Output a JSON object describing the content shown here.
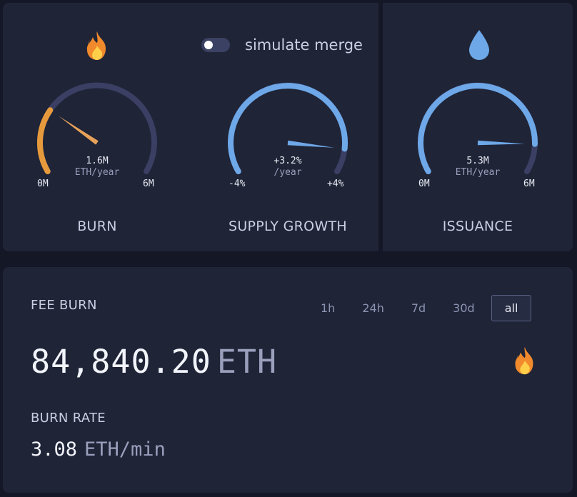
{
  "toggle": {
    "label": "simulate merge",
    "on": false
  },
  "gauges": [
    {
      "title": "BURN",
      "value": "1.6M",
      "unit": "ETH/year",
      "min": "0M",
      "max": "6M",
      "fraction": 0.27,
      "color": "#e79a3c",
      "icon": "fire-icon"
    },
    {
      "title": "SUPPLY GROWTH",
      "value": "+3.2%",
      "unit": "/year",
      "min": "-4%",
      "max": "+4%",
      "fraction": 0.9,
      "color": "#6ea8e8"
    },
    {
      "title": "ISSUANCE",
      "value": "5.3M",
      "unit": "ETH/year",
      "min": "0M",
      "max": "6M",
      "fraction": 0.88,
      "color": "#6ea8e8",
      "icon": "droplet-icon"
    }
  ],
  "fee_burn": {
    "title": "FEE BURN",
    "tabs": [
      "1h",
      "24h",
      "7d",
      "30d",
      "all"
    ],
    "active_tab": "all",
    "value": "84,840.20",
    "unit": "ETH",
    "icon": "fire-icon"
  },
  "burn_rate": {
    "title": "BURN RATE",
    "value": "3.08",
    "unit": "ETH/min"
  },
  "colors": {
    "background": "#131726",
    "card": "#1f2437",
    "track": "#3a3f63",
    "burn": "#e79a3c",
    "blue": "#6ea8e8"
  }
}
